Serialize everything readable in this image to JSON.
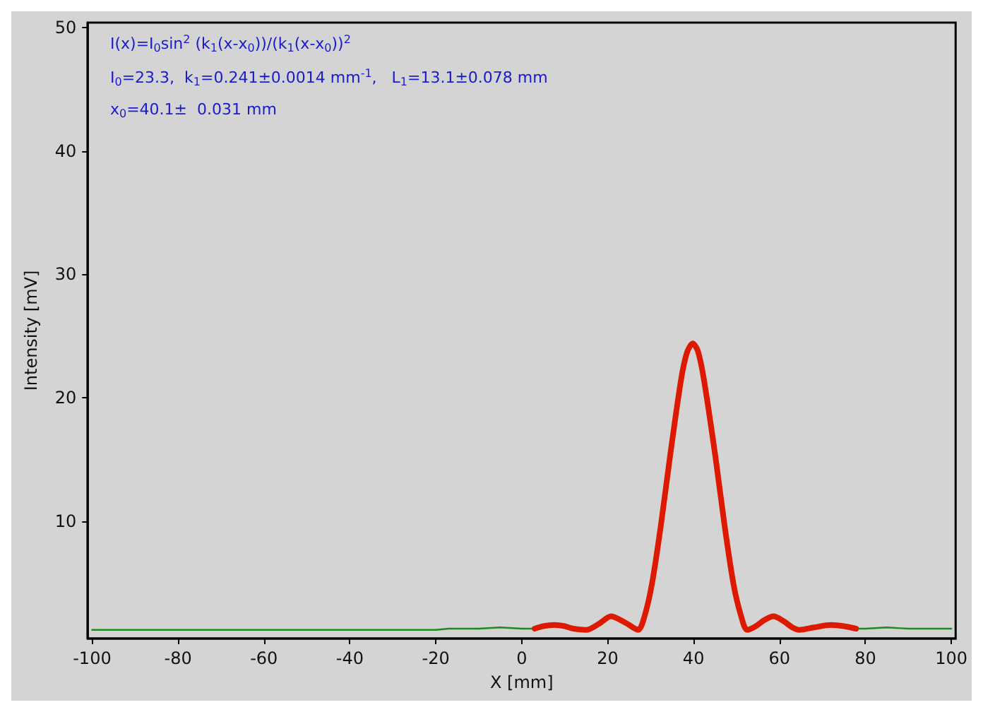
{
  "chart_data": {
    "type": "line",
    "xlabel": "X [mm]",
    "ylabel": "Intensity [mV]",
    "xlim": [
      -101,
      101
    ],
    "xticks": [
      -100,
      -80,
      -60,
      -40,
      -20,
      0,
      20,
      40,
      60,
      80,
      100
    ],
    "ylim": [
      0.5,
      50.4
    ],
    "yticks": [
      10,
      20,
      30,
      40,
      50
    ],
    "grid": false,
    "marker": "none",
    "line_style": "solid",
    "annotations": [
      "I(x)=I$_{0}$sin$^{2}$ (k$_{1}$(x-x$_{0}$))/(k$_{1}$(x-x$_{0}$))$^{2}$",
      "I$_{0}$=23.3,  k$_{1}$=0.241±0.0014 mm$^{-1}$,   L$_{1}$=13.1±0.078 mm",
      "x$_{0}$=40.1±  0.031 mm"
    ],
    "series": [
      {
        "color": "#1f8a1f",
        "x": [
          -100,
          -80,
          -60,
          -40,
          -20,
          -17,
          -10,
          -5,
          0,
          3,
          40,
          78,
          80,
          85,
          90,
          100
        ],
        "values": [
          1.2,
          1.2,
          1.2,
          1.2,
          1.2,
          1.3,
          1.3,
          1.4,
          1.3,
          1.3,
          null,
          1.3,
          1.3,
          1.4,
          1.3,
          1.3
        ]
      },
      {
        "color": "#dd1a00",
        "x": [
          3,
          5,
          7.6,
          10,
          12,
          15,
          18,
          20.8,
          23,
          25,
          27.1,
          28.5,
          30.3,
          32.4,
          34.5,
          37.1,
          38.5,
          39.8,
          41,
          42.4,
          45.1,
          47.2,
          49.3,
          51,
          52.5,
          54.5,
          56.5,
          58.6,
          61,
          63,
          64.6,
          68,
          72,
          75,
          77.8
        ],
        "values": [
          1.3,
          1.5,
          1.6,
          1.5,
          1.3,
          1.2,
          1.7,
          2.3,
          2,
          1.6,
          1.2,
          2.2,
          4.9,
          9.7,
          15.2,
          21.5,
          23.7,
          24.4,
          23.8,
          21.5,
          15.2,
          9.7,
          4.9,
          2.4,
          1.2,
          1.5,
          2,
          2.3,
          1.9,
          1.4,
          1.2,
          1.4,
          1.6,
          1.5,
          1.3
        ]
      }
    ]
  }
}
